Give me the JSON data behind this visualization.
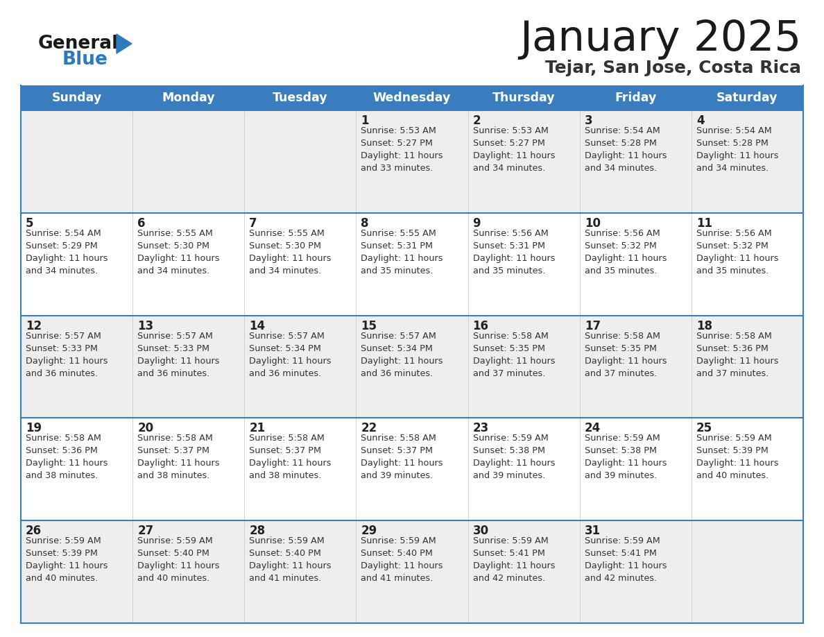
{
  "title": "January 2025",
  "subtitle": "Tejar, San Jose, Costa Rica",
  "days_of_week": [
    "Sunday",
    "Monday",
    "Tuesday",
    "Wednesday",
    "Thursday",
    "Friday",
    "Saturday"
  ],
  "header_bg": "#3a7dbf",
  "header_text_color": "#ffffff",
  "row_bg_light": "#eeeeee",
  "row_bg_white": "#ffffff",
  "cell_border_color": "#3a7dbf",
  "day_num_color": "#222222",
  "content_color": "#333333",
  "title_color": "#1a1a1a",
  "subtitle_color": "#333333",
  "logo_general_color": "#1a1a1a",
  "logo_blue_color": "#2e7abf",
  "calendar_data": [
    [
      null,
      null,
      null,
      {
        "day": 1,
        "sunrise": "5:53 AM",
        "sunset": "5:27 PM",
        "daylight": "11 hours\nand 33 minutes."
      },
      {
        "day": 2,
        "sunrise": "5:53 AM",
        "sunset": "5:27 PM",
        "daylight": "11 hours\nand 34 minutes."
      },
      {
        "day": 3,
        "sunrise": "5:54 AM",
        "sunset": "5:28 PM",
        "daylight": "11 hours\nand 34 minutes."
      },
      {
        "day": 4,
        "sunrise": "5:54 AM",
        "sunset": "5:28 PM",
        "daylight": "11 hours\nand 34 minutes."
      }
    ],
    [
      {
        "day": 5,
        "sunrise": "5:54 AM",
        "sunset": "5:29 PM",
        "daylight": "11 hours\nand 34 minutes."
      },
      {
        "day": 6,
        "sunrise": "5:55 AM",
        "sunset": "5:30 PM",
        "daylight": "11 hours\nand 34 minutes."
      },
      {
        "day": 7,
        "sunrise": "5:55 AM",
        "sunset": "5:30 PM",
        "daylight": "11 hours\nand 34 minutes."
      },
      {
        "day": 8,
        "sunrise": "5:55 AM",
        "sunset": "5:31 PM",
        "daylight": "11 hours\nand 35 minutes."
      },
      {
        "day": 9,
        "sunrise": "5:56 AM",
        "sunset": "5:31 PM",
        "daylight": "11 hours\nand 35 minutes."
      },
      {
        "day": 10,
        "sunrise": "5:56 AM",
        "sunset": "5:32 PM",
        "daylight": "11 hours\nand 35 minutes."
      },
      {
        "day": 11,
        "sunrise": "5:56 AM",
        "sunset": "5:32 PM",
        "daylight": "11 hours\nand 35 minutes."
      }
    ],
    [
      {
        "day": 12,
        "sunrise": "5:57 AM",
        "sunset": "5:33 PM",
        "daylight": "11 hours\nand 36 minutes."
      },
      {
        "day": 13,
        "sunrise": "5:57 AM",
        "sunset": "5:33 PM",
        "daylight": "11 hours\nand 36 minutes."
      },
      {
        "day": 14,
        "sunrise": "5:57 AM",
        "sunset": "5:34 PM",
        "daylight": "11 hours\nand 36 minutes."
      },
      {
        "day": 15,
        "sunrise": "5:57 AM",
        "sunset": "5:34 PM",
        "daylight": "11 hours\nand 36 minutes."
      },
      {
        "day": 16,
        "sunrise": "5:58 AM",
        "sunset": "5:35 PM",
        "daylight": "11 hours\nand 37 minutes."
      },
      {
        "day": 17,
        "sunrise": "5:58 AM",
        "sunset": "5:35 PM",
        "daylight": "11 hours\nand 37 minutes."
      },
      {
        "day": 18,
        "sunrise": "5:58 AM",
        "sunset": "5:36 PM",
        "daylight": "11 hours\nand 37 minutes."
      }
    ],
    [
      {
        "day": 19,
        "sunrise": "5:58 AM",
        "sunset": "5:36 PM",
        "daylight": "11 hours\nand 38 minutes."
      },
      {
        "day": 20,
        "sunrise": "5:58 AM",
        "sunset": "5:37 PM",
        "daylight": "11 hours\nand 38 minutes."
      },
      {
        "day": 21,
        "sunrise": "5:58 AM",
        "sunset": "5:37 PM",
        "daylight": "11 hours\nand 38 minutes."
      },
      {
        "day": 22,
        "sunrise": "5:58 AM",
        "sunset": "5:37 PM",
        "daylight": "11 hours\nand 39 minutes."
      },
      {
        "day": 23,
        "sunrise": "5:59 AM",
        "sunset": "5:38 PM",
        "daylight": "11 hours\nand 39 minutes."
      },
      {
        "day": 24,
        "sunrise": "5:59 AM",
        "sunset": "5:38 PM",
        "daylight": "11 hours\nand 39 minutes."
      },
      {
        "day": 25,
        "sunrise": "5:59 AM",
        "sunset": "5:39 PM",
        "daylight": "11 hours\nand 40 minutes."
      }
    ],
    [
      {
        "day": 26,
        "sunrise": "5:59 AM",
        "sunset": "5:39 PM",
        "daylight": "11 hours\nand 40 minutes."
      },
      {
        "day": 27,
        "sunrise": "5:59 AM",
        "sunset": "5:40 PM",
        "daylight": "11 hours\nand 40 minutes."
      },
      {
        "day": 28,
        "sunrise": "5:59 AM",
        "sunset": "5:40 PM",
        "daylight": "11 hours\nand 41 minutes."
      },
      {
        "day": 29,
        "sunrise": "5:59 AM",
        "sunset": "5:40 PM",
        "daylight": "11 hours\nand 41 minutes."
      },
      {
        "day": 30,
        "sunrise": "5:59 AM",
        "sunset": "5:41 PM",
        "daylight": "11 hours\nand 42 minutes."
      },
      {
        "day": 31,
        "sunrise": "5:59 AM",
        "sunset": "5:41 PM",
        "daylight": "11 hours\nand 42 minutes."
      },
      null
    ]
  ],
  "row_bg_sequence": [
    "light",
    "white",
    "light",
    "white",
    "light"
  ]
}
